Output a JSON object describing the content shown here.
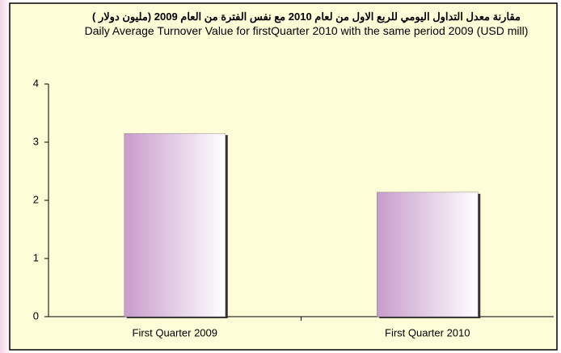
{
  "chart_data": {
    "type": "bar",
    "title": "مقارنة معدل التداول اليومي للربع الاول من لعام 2010 مع نفس الفترة من العام 2009 (مليون دولار )",
    "subtitle": "Daily Average Turnover Value for  firstQuarter 2010 with the same period 2009 (USD mill)",
    "categories": [
      "First Quarter 2009",
      "First Quarter 2010"
    ],
    "values": [
      3.15,
      2.14
    ],
    "color": "#c89ccc",
    "ylim": [
      0,
      4
    ],
    "yticks": [
      0,
      1,
      2,
      3,
      4
    ],
    "grid": false
  }
}
